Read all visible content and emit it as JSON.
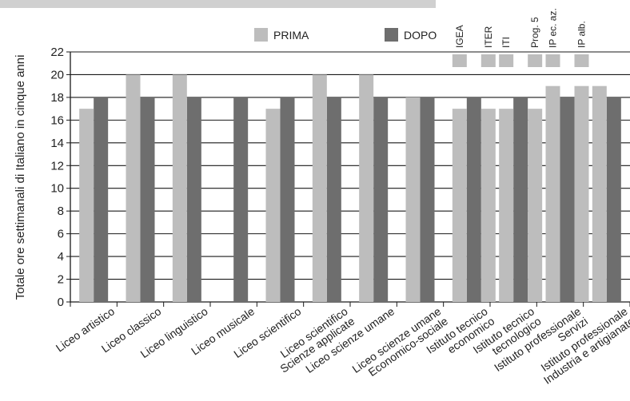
{
  "chart_data": {
    "type": "bar",
    "ylabel": "Totale ore settimanali di Italiano in cinque anni",
    "ylim": [
      0,
      22
    ],
    "yticks": [
      0,
      2,
      4,
      6,
      8,
      10,
      12,
      14,
      16,
      18,
      20,
      22
    ],
    "grid": "horizontal",
    "legend_position": "top",
    "categories": [
      [
        "Liceo artistico"
      ],
      [
        "Liceo classico"
      ],
      [
        "Liceo linguistico"
      ],
      [
        "Liceo musicale"
      ],
      [
        "Liceo scientifico"
      ],
      [
        "Liceo scientifico",
        "Scienze applicate"
      ],
      [
        "Liceo scienze umane"
      ],
      [
        "Liceo scienze umane",
        "Economico-sociale"
      ],
      [
        "Istituto tecnico",
        "economico"
      ],
      [
        "Istituto tecnico",
        "tecnologico"
      ],
      [
        "Istituto professionale",
        "Servizi"
      ],
      [
        "Istituto professionale",
        "Industria e artigianato"
      ]
    ],
    "series": [
      {
        "name": "PRIMA",
        "color": "#bdbdbd",
        "values": [
          [
            17
          ],
          [
            20
          ],
          [
            20
          ],
          [],
          [
            17
          ],
          [
            20
          ],
          [
            20
          ],
          [
            18
          ],
          [
            17,
            17
          ],
          [
            17,
            17
          ],
          [
            19,
            19
          ],
          [
            19
          ]
        ]
      },
      {
        "name": "DOPO",
        "color": "#6e6e6e",
        "values": [
          18,
          18,
          18,
          18,
          18,
          18,
          18,
          18,
          18,
          18,
          18,
          18
        ]
      }
    ],
    "sub_labels": [
      {
        "category_index": 8,
        "labels": [
          "IGEA",
          "ITER"
        ]
      },
      {
        "category_index": 9,
        "labels": [
          "ITI",
          "Prog. 5"
        ]
      },
      {
        "category_index": 10,
        "labels": [
          "IP ec. az.",
          "IP alb."
        ]
      }
    ]
  }
}
